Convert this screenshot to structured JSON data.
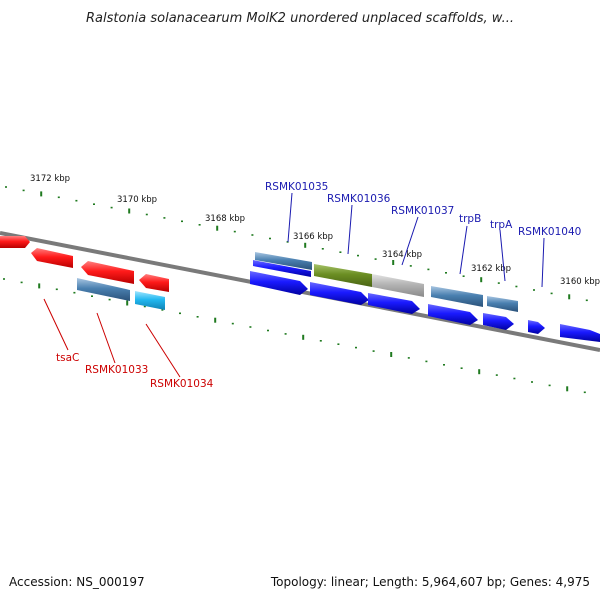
{
  "title": "Ralstonia solanacearum MolK2 unordered unplaced scaffolds, w...",
  "footer": {
    "accession": "Accession: NS_000197",
    "summary": "Topology: linear; Length: 5,964,607 bp; Genes: 4,975"
  },
  "colors": {
    "backbone": "#7a7a7a",
    "tick": "#1f7a1f",
    "label_forward": "#1a1ab0",
    "label_reverse": "#cc0000",
    "red": "#ff1a1a",
    "blue": "#1a1aff",
    "steel": "#4a80b0",
    "cyan": "#22b8f0",
    "olive": "#6b8e23",
    "gray": "#b4b4b4"
  },
  "scale_labels": [
    "3172 kbp",
    "3170 kbp",
    "3168 kbp",
    "3166 kbp",
    "3164 kbp",
    "3162 kbp",
    "3160 kbp"
  ],
  "genes": [
    {
      "label": "tsaC",
      "strand": "reverse"
    },
    {
      "label": "RSMK01033",
      "strand": "reverse"
    },
    {
      "label": "RSMK01034",
      "strand": "reverse"
    },
    {
      "label": "RSMK01035",
      "strand": "forward"
    },
    {
      "label": "RSMK01036",
      "strand": "forward"
    },
    {
      "label": "RSMK01037",
      "strand": "forward"
    },
    {
      "label": "trpB",
      "strand": "forward"
    },
    {
      "label": "trpA",
      "strand": "forward"
    },
    {
      "label": "RSMK01040",
      "strand": "forward"
    }
  ]
}
